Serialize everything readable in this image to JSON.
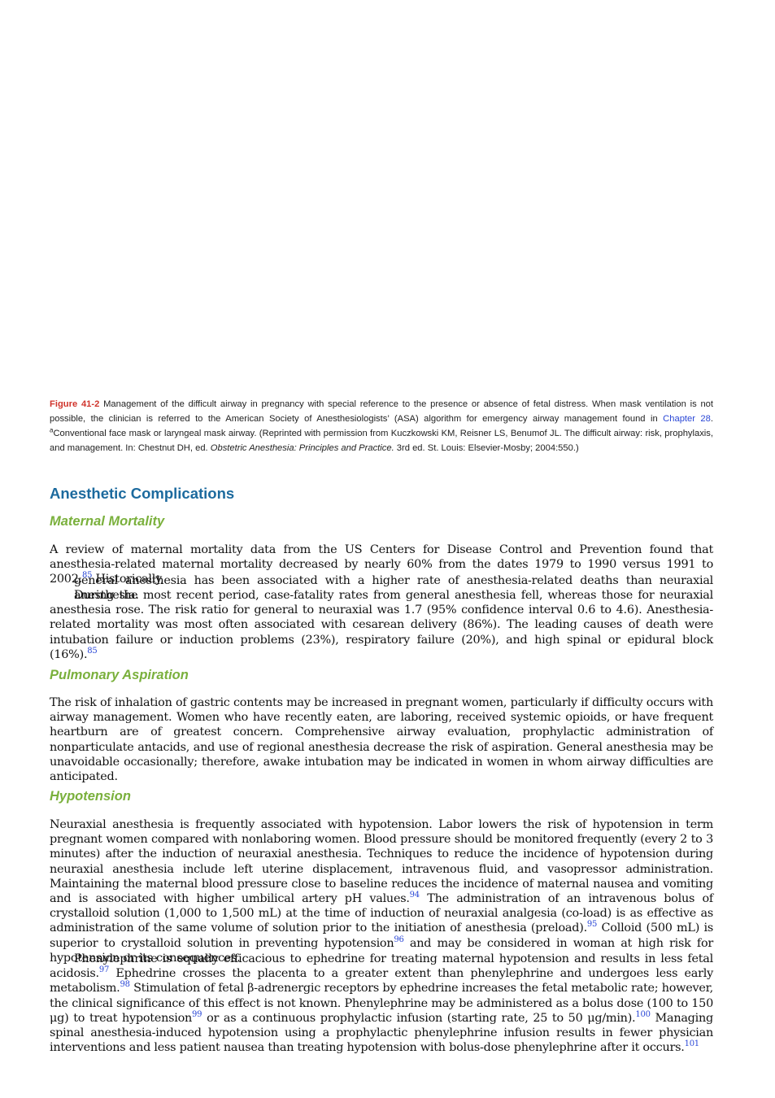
{
  "caption": {
    "label": "Figure 41-2",
    "text1": " Management of the difficult airway in pregnancy with special reference to the presence or absence of fetal distress. When mask ventilation is not possible, the clinician is referred to the American Society of Anesthesiologists’ (ASA) algorithm for emergency airway management found in ",
    "chapter_link": "Chapter 28",
    "text2": ". ",
    "footnote_marker": "a",
    "text3": "Conventional face mask or laryngeal mask airway. (Reprinted with permission from Kuczkowski KM, Reisner LS, Benumof JL. The difficult airway: risk, prophylaxis, and management. In: Chestnut DH, ed. ",
    "book_title": "Obstetric Anesthesia: Principles and Practice.",
    "text4": " 3rd ed. St. Louis: Elsevier-Mosby; 2004:550.)"
  },
  "section_title": "Anesthetic Complications",
  "maternal": {
    "title": "Maternal Mortality",
    "p1a": "A review of maternal mortality data from the US Centers for Disease Control and Prevention found that anesthesia-related maternal mortality decreased by nearly 60% from the dates 1979 to 1990 versus 1991 to 2002.",
    "p1_ref": "85",
    "p1b": " Historically,",
    "p2": "general anesthesia has been associated with a higher rate of anesthesia-related deaths than neuraxial anesthesia.",
    "p3a": "During the most recent period, case-fatality rates from general anesthesia fell, whereas those for neuraxial anesthesia rose. The risk ratio for general to neuraxial was 1.7 (95% confidence interval 0.6 to 4.6). Anesthesia-related mortality was most often associated with cesarean delivery (86%). The leading causes of death were intubation failure or induction problems (23%), respiratory failure (20%), and high spinal or epidural block (16%).",
    "p3_ref": "85"
  },
  "pulmonary": {
    "title": "Pulmonary Aspiration",
    "p1": "The risk of inhalation of gastric contents may be increased in pregnant women, particularly if difficulty occurs with airway management. Women who have recently eaten, are laboring, received systemic opioids, or have frequent heartburn are of greatest concern. Comprehensive airway evaluation, prophylactic administration of nonparticulate antacids, and use of regional anesthesia decrease the risk of aspiration. General anesthesia may be unavoidable occasionally; therefore, awake intubation may be indicated in women in whom airway difficulties are anticipated."
  },
  "hypotension": {
    "title": "Hypotension",
    "p1a": "Neuraxial anesthesia is frequently associated with hypotension. Labor lowers the risk of hypotension in term pregnant women compared with nonlaboring women. Blood pressure should be monitored frequently (every 2 to 3 minutes) after the induction of neuraxial anesthesia. Techniques to reduce the incidence of hypotension during neuraxial anesthesia include left uterine displacement, intravenous fluid, and vasopressor administration. Maintaining the maternal blood pressure close to baseline reduces the incidence of maternal nausea and vomiting and is associated with higher umbilical artery pH values.",
    "ref94": "94",
    "p1b": " The administration of an intravenous bolus of crystalloid solution (1,000 to 1,500 mL) at the time of induction of neuraxial analgesia (co-load) is as effective as administration of the same volume of solution prior to the initiation of anesthesia (preload).",
    "ref95": "95",
    "p1c": " Colloid (500 mL) is superior to crystalloid solution in preventing hypotension",
    "ref96": "96",
    "p1d": " and may be considered in woman at high risk for hypotension or its consequences.",
    "p2a": "Phenylephrine is equally efficacious to ephedrine for treating maternal hypotension and results in less fetal acidosis.",
    "ref97": "97",
    "p2b": " Ephedrine crosses the placenta to a greater extent than phenylephrine and undergoes less early metabolism.",
    "ref98": "98",
    "p2c": " Stimulation of fetal β-adrenergic receptors by ephedrine increases the fetal metabolic rate; however, the clinical significance of this effect is not known. Phenylephrine may be administered as a bolus dose (100 to 150 μg) to treat hypotension",
    "ref99": "99",
    "p2d": " or as a continuous prophylactic infusion (starting rate, 25 to 50 μg/min).",
    "ref100": "100",
    "p2e": " Managing spinal anesthesia-induced hypotension using a prophylactic phenylephrine infusion results in fewer physician interventions and less patient nausea than treating hypotension with bolus-dose phenylephrine after it occurs.",
    "ref101": "101"
  }
}
